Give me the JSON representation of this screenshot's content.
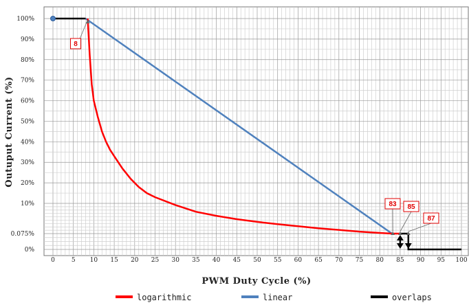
{
  "chart_data": {
    "type": "line",
    "title": "",
    "xlabel": "PWM Duty Cycle (%)",
    "ylabel": "Outuput Current (%)",
    "xlim": [
      0,
      100
    ],
    "x_ticks": [
      "0",
      "5",
      "10",
      "15",
      "20",
      "25",
      "30",
      "35",
      "40",
      "45",
      "50",
      "55",
      "60",
      "65",
      "70",
      "75",
      "80",
      "85",
      "90",
      "95",
      "100"
    ],
    "y_ticks": [
      "0%",
      "0.075%",
      "10%",
      "20%",
      "30%",
      "40%",
      "50%",
      "60%",
      "70%",
      "80%",
      "90%",
      "100%"
    ],
    "grid": true,
    "legend_position": "bottom",
    "series": [
      {
        "name": "logarithmic",
        "color": "#ff0000",
        "points": [
          [
            8.5,
            100
          ],
          [
            9,
            82
          ],
          [
            9.5,
            68
          ],
          [
            10,
            60
          ],
          [
            11,
            52
          ],
          [
            12,
            45
          ],
          [
            13,
            40
          ],
          [
            14,
            36
          ],
          [
            15,
            33
          ],
          [
            17,
            27
          ],
          [
            19,
            22
          ],
          [
            21,
            18
          ],
          [
            23,
            15
          ],
          [
            25,
            13
          ],
          [
            30,
            9.5
          ],
          [
            35,
            7.5
          ],
          [
            40,
            6.3
          ],
          [
            45,
            5.3
          ],
          [
            50,
            4.5
          ],
          [
            55,
            3.8
          ],
          [
            60,
            3.2
          ],
          [
            65,
            2.6
          ],
          [
            70,
            2.1
          ],
          [
            75,
            1.6
          ],
          [
            80,
            1.2
          ],
          [
            83,
            1.0
          ],
          [
            85,
            1.0
          ]
        ]
      },
      {
        "name": "linear",
        "color": "#4f81bd",
        "points": [
          [
            8,
            100
          ],
          [
            83,
            1.0
          ]
        ]
      },
      {
        "name": "overlaps",
        "color": "#000000",
        "points": [
          [
            0,
            100
          ],
          [
            8,
            100
          ]
        ],
        "tail": [
          [
            87,
            1.0
          ],
          [
            87,
            0
          ],
          [
            100,
            0
          ]
        ]
      }
    ],
    "annotations": [
      {
        "label": "8",
        "x": 8
      },
      {
        "label": "83",
        "x": 83
      },
      {
        "label": "85",
        "x": 85
      },
      {
        "label": "87",
        "x": 87
      }
    ]
  }
}
